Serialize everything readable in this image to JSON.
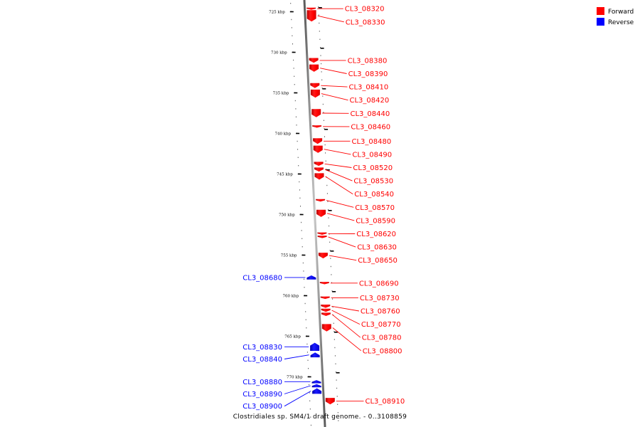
{
  "legend": [
    {
      "label": "Forward",
      "color": "#ff0000"
    },
    {
      "label": "Reverse",
      "color": "#0000ff"
    }
  ],
  "caption": "Clostridiales sp. SM4/1 draft genome. - 0..3108859",
  "axis_unit": "kbp",
  "ticks_kbp": [
    725,
    730,
    735,
    740,
    745,
    750,
    755,
    760,
    765,
    770
  ],
  "genes": [
    {
      "name": "CL3_08320",
      "strand": "forward",
      "start_kbp": 724.5,
      "end_kbp": 724.75
    },
    {
      "name": "CL3_08330",
      "strand": "forward",
      "start_kbp": 724.8,
      "end_kbp": 726.2
    },
    {
      "name": "CL3_08380",
      "strand": "forward",
      "start_kbp": 730.7,
      "end_kbp": 731.3
    },
    {
      "name": "CL3_08390",
      "strand": "forward",
      "start_kbp": 731.5,
      "end_kbp": 732.4
    },
    {
      "name": "CL3_08410",
      "strand": "forward",
      "start_kbp": 733.8,
      "end_kbp": 734.4
    },
    {
      "name": "CL3_08420",
      "strand": "forward",
      "start_kbp": 734.6,
      "end_kbp": 735.6
    },
    {
      "name": "CL3_08440",
      "strand": "forward",
      "start_kbp": 737.0,
      "end_kbp": 738.0
    },
    {
      "name": "CL3_08460",
      "strand": "forward",
      "start_kbp": 739.0,
      "end_kbp": 739.3
    },
    {
      "name": "CL3_08480",
      "strand": "forward",
      "start_kbp": 740.6,
      "end_kbp": 741.3
    },
    {
      "name": "CL3_08490",
      "strand": "forward",
      "start_kbp": 741.5,
      "end_kbp": 742.4
    },
    {
      "name": "CL3_08520",
      "strand": "forward",
      "start_kbp": 743.5,
      "end_kbp": 744.0
    },
    {
      "name": "CL3_08530",
      "strand": "forward",
      "start_kbp": 744.2,
      "end_kbp": 744.7
    },
    {
      "name": "CL3_08540",
      "strand": "forward",
      "start_kbp": 744.9,
      "end_kbp": 745.7
    },
    {
      "name": "CL3_08570",
      "strand": "forward",
      "start_kbp": 748.1,
      "end_kbp": 748.4
    },
    {
      "name": "CL3_08590",
      "strand": "forward",
      "start_kbp": 749.4,
      "end_kbp": 750.3
    },
    {
      "name": "CL3_08620",
      "strand": "forward",
      "start_kbp": 752.2,
      "end_kbp": 752.5
    },
    {
      "name": "CL3_08630",
      "strand": "forward",
      "start_kbp": 752.6,
      "end_kbp": 752.9
    },
    {
      "name": "CL3_08650",
      "strand": "forward",
      "start_kbp": 754.7,
      "end_kbp": 755.4
    },
    {
      "name": "CL3_08690",
      "strand": "forward",
      "start_kbp": 758.3,
      "end_kbp": 758.6
    },
    {
      "name": "CL3_08730",
      "strand": "forward",
      "start_kbp": 760.1,
      "end_kbp": 760.4
    },
    {
      "name": "CL3_08760",
      "strand": "forward",
      "start_kbp": 761.1,
      "end_kbp": 761.5
    },
    {
      "name": "CL3_08770",
      "strand": "forward",
      "start_kbp": 761.6,
      "end_kbp": 762.0
    },
    {
      "name": "CL3_08780",
      "strand": "forward",
      "start_kbp": 762.1,
      "end_kbp": 762.5
    },
    {
      "name": "CL3_08800",
      "strand": "forward",
      "start_kbp": 763.5,
      "end_kbp": 764.4
    },
    {
      "name": "CL3_08680",
      "strand": "reverse",
      "start_kbp": 757.5,
      "end_kbp": 758.0
    },
    {
      "name": "CL3_08830",
      "strand": "reverse",
      "start_kbp": 765.8,
      "end_kbp": 766.8
    },
    {
      "name": "CL3_08840",
      "strand": "reverse",
      "start_kbp": 767.0,
      "end_kbp": 767.6
    },
    {
      "name": "CL3_08880",
      "strand": "reverse",
      "start_kbp": 770.4,
      "end_kbp": 770.8
    },
    {
      "name": "CL3_08890",
      "strand": "reverse",
      "start_kbp": 770.9,
      "end_kbp": 771.3
    },
    {
      "name": "CL3_08900",
      "strand": "reverse",
      "start_kbp": 771.4,
      "end_kbp": 772.1
    },
    {
      "name": "CL3_08910",
      "strand": "forward",
      "start_kbp": 772.6,
      "end_kbp": 773.4
    }
  ]
}
